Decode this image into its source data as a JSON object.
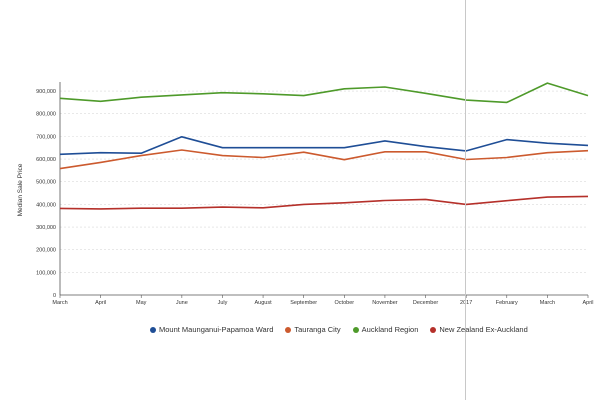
{
  "chart_data": {
    "type": "line",
    "ylabel": "Median Sale Price",
    "categories": [
      "March",
      "April",
      "May",
      "June",
      "July",
      "August",
      "September",
      "October",
      "November",
      "December",
      "2017",
      "February",
      "March",
      "April"
    ],
    "yticks": [
      0,
      100000,
      200000,
      300000,
      400000,
      500000,
      600000,
      700000,
      800000,
      900000
    ],
    "ytick_labels": [
      "0",
      "100,000",
      "200,000",
      "300,000",
      "400,000",
      "500,000",
      "600,000",
      "700,000",
      "800,000",
      "900,000"
    ],
    "ylim": [
      0,
      940000
    ],
    "grid": true,
    "legend_position": "bottom",
    "series": [
      {
        "name": "Mount Maunganui-Papamoa Ward",
        "color": "#1f4e96",
        "values": [
          621000,
          628000,
          626000,
          698000,
          650000,
          650000,
          650000,
          650000,
          680000,
          655000,
          636000,
          686000,
          670000,
          660000
        ]
      },
      {
        "name": "Tauranga City",
        "color": "#cc5a2e",
        "values": [
          558000,
          585000,
          615000,
          640000,
          615000,
          607000,
          630000,
          597000,
          632000,
          632000,
          598000,
          607000,
          628000,
          637000
        ]
      },
      {
        "name": "Auckland Region",
        "color": "#4e9a2a",
        "values": [
          868000,
          855000,
          873000,
          883000,
          893000,
          888000,
          880000,
          910000,
          918000,
          890000,
          860000,
          850000,
          935000,
          880000
        ]
      },
      {
        "name": "New Zealand Ex-Auckland",
        "color": "#b5302a",
        "values": [
          382000,
          380000,
          383000,
          383000,
          388000,
          385000,
          400000,
          407000,
          417000,
          422000,
          400000,
          416000,
          432000,
          435000
        ]
      }
    ]
  }
}
